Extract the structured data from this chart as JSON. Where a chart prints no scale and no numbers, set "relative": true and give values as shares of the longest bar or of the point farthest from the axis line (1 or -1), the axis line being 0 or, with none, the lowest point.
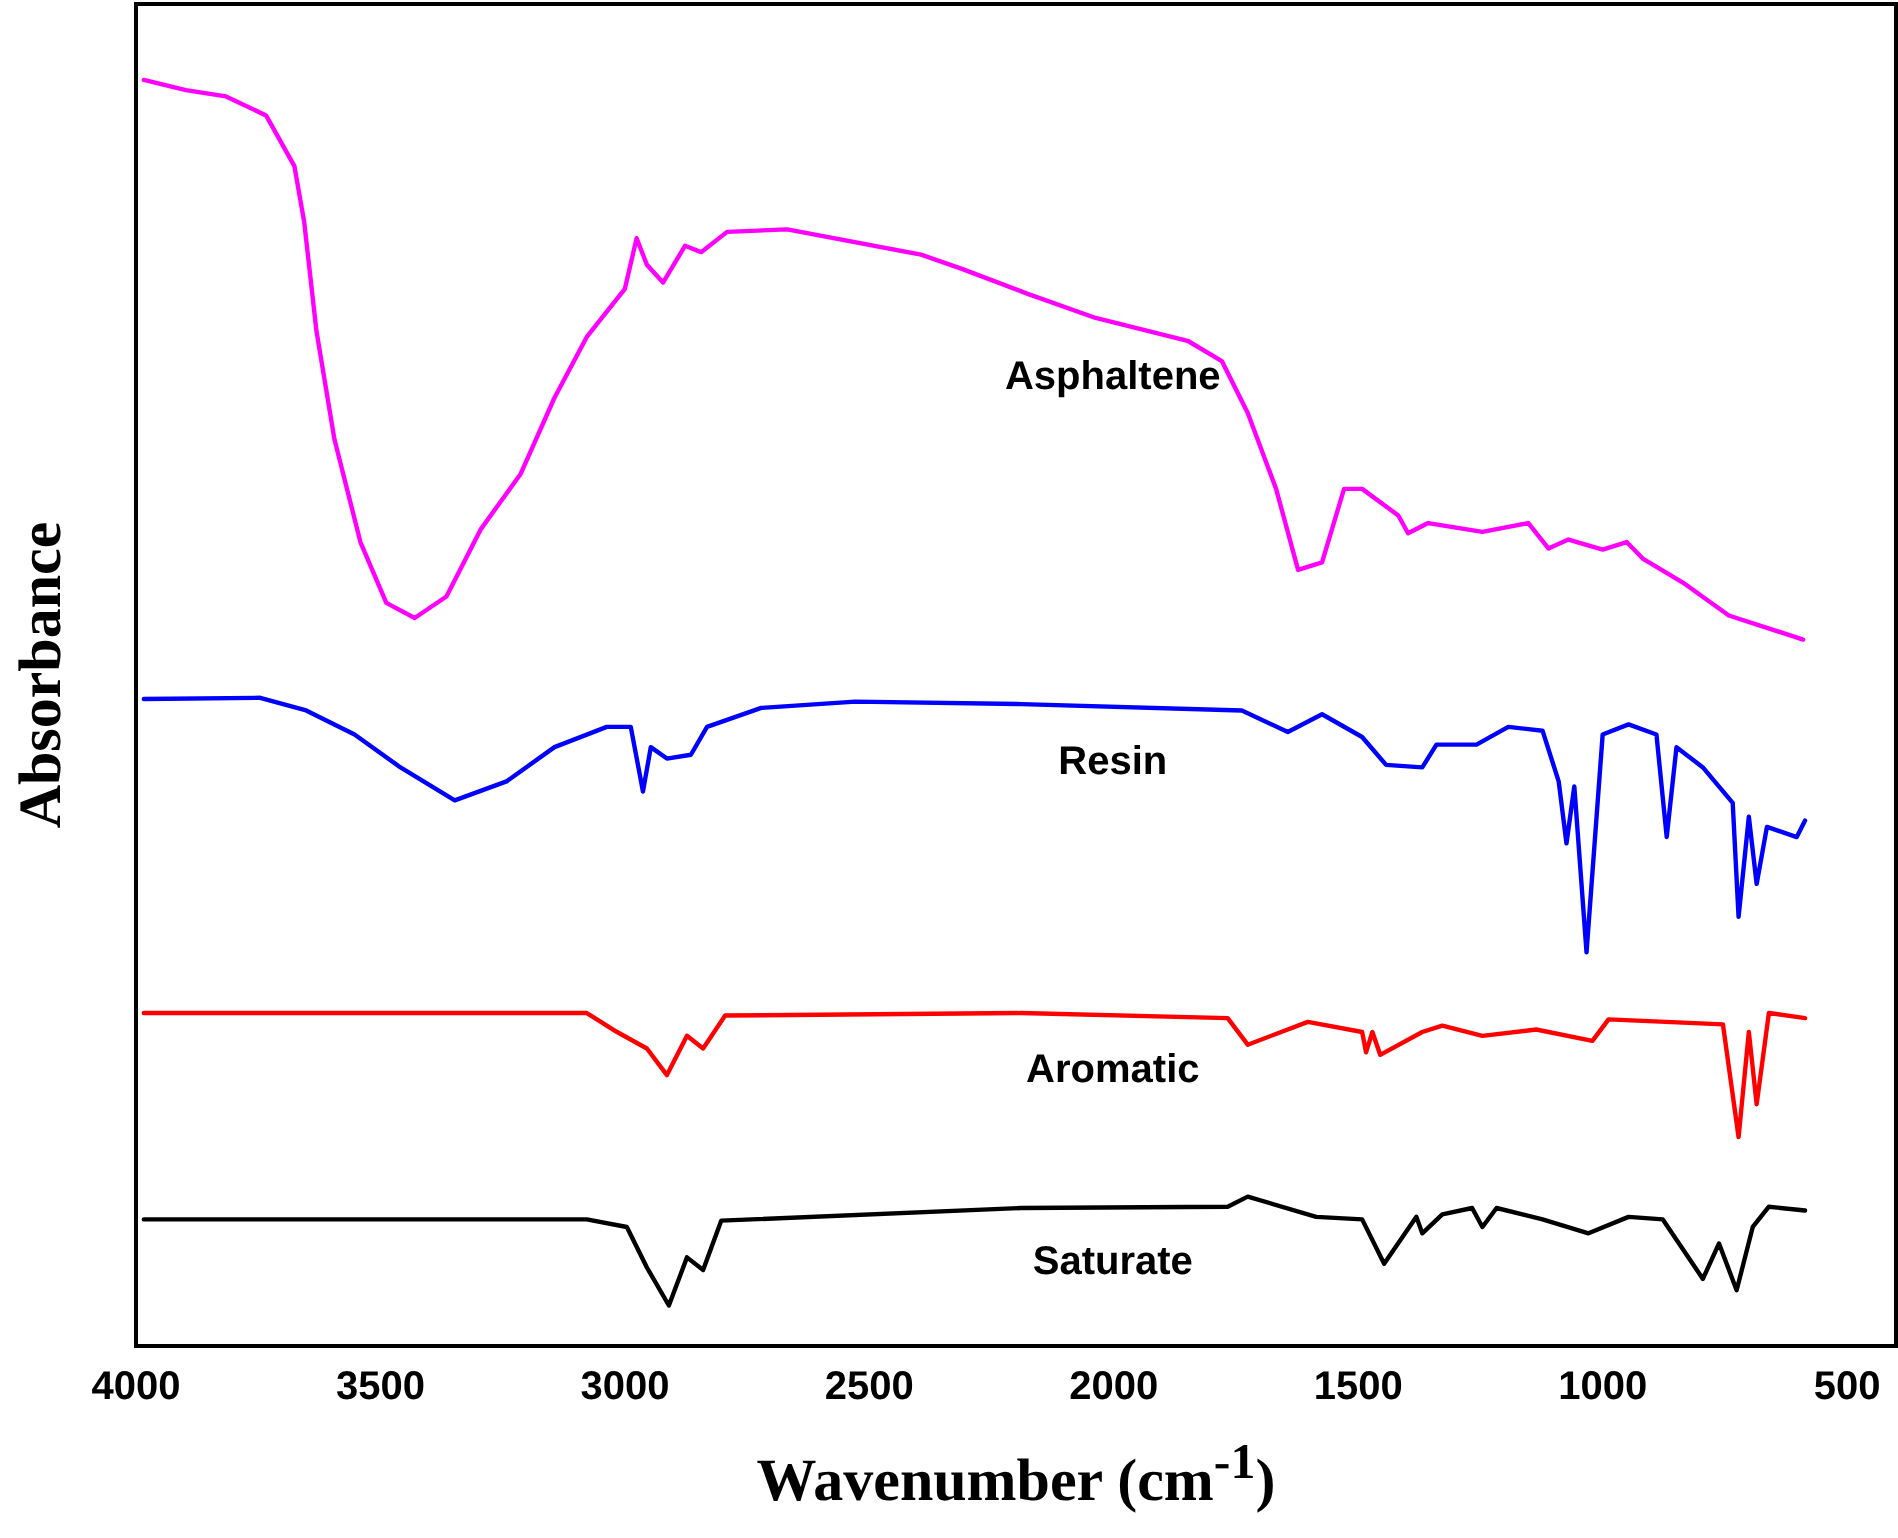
{
  "chart_data": {
    "type": "line",
    "relative": true,
    "xlabel": "Wavenumber (cm$^{-1}$)",
    "ylabel": "Absorbance",
    "xlim": [
      4000,
      400
    ],
    "xticks": [
      4000,
      3500,
      3000,
      2500,
      2000,
      1500,
      1000,
      500
    ],
    "tick_labels": "x",
    "grid": false,
    "legend": false,
    "marker": "none",
    "line_style": "solid",
    "series": [
      {
        "name": "Asphaltene",
        "color": "#ff00ff",
        "x": [
          3984,
          3898,
          3816,
          3734,
          3676,
          3656,
          3631,
          3594,
          3541,
          3488,
          3430,
          3365,
          3295,
          3213,
          3144,
          3078,
          3000,
          2976,
          2955,
          2922,
          2877,
          2844,
          2791,
          2668,
          2394,
          2312,
          2176,
          2037,
          1849,
          1779,
          1726,
          1668,
          1623,
          1574,
          1529,
          1492,
          1418,
          1398,
          1357,
          1246,
          1152,
          1111,
          1070,
          1000,
          951,
          918,
          836,
          742,
          590
        ],
        "values": [
          1.0,
          0.992,
          0.987,
          0.972,
          0.932,
          0.888,
          0.802,
          0.716,
          0.635,
          0.587,
          0.575,
          0.592,
          0.645,
          0.689,
          0.749,
          0.797,
          0.835,
          0.875,
          0.854,
          0.84,
          0.869,
          0.864,
          0.88,
          0.882,
          0.862,
          0.851,
          0.831,
          0.812,
          0.794,
          0.778,
          0.737,
          0.677,
          0.613,
          0.619,
          0.677,
          0.677,
          0.656,
          0.642,
          0.65,
          0.643,
          0.65,
          0.63,
          0.637,
          0.629,
          0.635,
          0.622,
          0.603,
          0.577,
          0.558
        ]
      },
      {
        "name": "Resin",
        "color": "#0000ff",
        "x": [
          3984,
          3746,
          3652,
          3553,
          3459,
          3348,
          3242,
          3144,
          3037,
          2988,
          2963,
          2947,
          2914,
          2865,
          2832,
          2721,
          2529,
          2189,
          1738,
          1644,
          1574,
          1492,
          1443,
          1369,
          1340,
          1258,
          1193,
          1123,
          1090,
          1074,
          1058,
          1033,
          1000,
          947,
          890,
          869,
          849,
          795,
          734,
          722,
          701,
          685,
          664,
          603,
          586
        ],
        "values": [
          0.511,
          0.512,
          0.502,
          0.483,
          0.457,
          0.431,
          0.446,
          0.473,
          0.489,
          0.489,
          0.438,
          0.473,
          0.464,
          0.467,
          0.489,
          0.504,
          0.509,
          0.507,
          0.502,
          0.485,
          0.499,
          0.481,
          0.459,
          0.457,
          0.475,
          0.475,
          0.489,
          0.486,
          0.446,
          0.397,
          0.442,
          0.311,
          0.483,
          0.491,
          0.483,
          0.402,
          0.473,
          0.457,
          0.429,
          0.339,
          0.418,
          0.365,
          0.41,
          0.402,
          0.415
        ]
      },
      {
        "name": "Aromatic",
        "color": "#ff0000",
        "x": [
          3984,
          3078,
          3016,
          2955,
          2914,
          2873,
          2840,
          2795,
          2189,
          1767,
          1726,
          1603,
          1492,
          1484,
          1471,
          1455,
          1369,
          1328,
          1246,
          1136,
          1021,
          988,
          754,
          722,
          701,
          685,
          660,
          586
        ],
        "values": [
          0.263,
          0.263,
          0.248,
          0.235,
          0.214,
          0.245,
          0.235,
          0.261,
          0.263,
          0.259,
          0.238,
          0.256,
          0.248,
          0.232,
          0.248,
          0.23,
          0.248,
          0.253,
          0.245,
          0.25,
          0.241,
          0.258,
          0.254,
          0.165,
          0.248,
          0.191,
          0.263,
          0.259
        ]
      },
      {
        "name": "Saturate",
        "color": "#000000",
        "x": [
          3984,
          3078,
          2996,
          2955,
          2910,
          2873,
          2840,
          2803,
          2189,
          1767,
          1726,
          1586,
          1492,
          1447,
          1381,
          1369,
          1328,
          1267,
          1246,
          1217,
          1123,
          1029,
          947,
          877,
          795,
          762,
          726,
          693,
          660,
          586
        ],
        "values": [
          0.1,
          0.1,
          0.094,
          0.062,
          0.032,
          0.07,
          0.06,
          0.099,
          0.109,
          0.11,
          0.118,
          0.102,
          0.1,
          0.065,
          0.102,
          0.089,
          0.104,
          0.109,
          0.094,
          0.109,
          0.1,
          0.089,
          0.102,
          0.1,
          0.053,
          0.081,
          0.044,
          0.094,
          0.11,
          0.107
        ]
      }
    ]
  }
}
